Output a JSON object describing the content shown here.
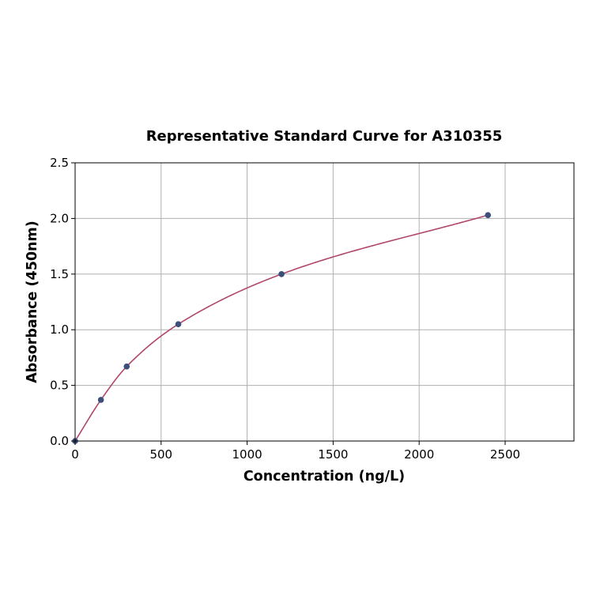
{
  "chart_data": {
    "type": "scatter",
    "title": "Representative Standard Curve for A310355",
    "xlabel": "Concentration (ng/L)",
    "ylabel": "Absorbance (450nm)",
    "xlim": [
      0,
      2900
    ],
    "ylim": [
      0,
      2.5
    ],
    "xticks": [
      0,
      500,
      1000,
      1500,
      2000,
      2500
    ],
    "yticks": [
      0.0,
      0.5,
      1.0,
      1.5,
      2.0,
      2.5
    ],
    "xtick_labels": [
      "0",
      "500",
      "1000",
      "1500",
      "2000",
      "2500"
    ],
    "ytick_labels": [
      "0.0",
      "0.5",
      "1.0",
      "1.5",
      "2.0",
      "2.5"
    ],
    "grid": true,
    "legend": "none",
    "series": [
      {
        "type": "scatter",
        "x": [
          0,
          150,
          300,
          600,
          1200,
          2400
        ],
        "y": [
          0.0,
          0.37,
          0.67,
          1.05,
          1.5,
          2.03
        ],
        "color": "#3b4f7a"
      },
      {
        "type": "line",
        "kind": "fitted-curve",
        "x_range": [
          0,
          2400
        ],
        "color": "#b0476a"
      }
    ]
  }
}
